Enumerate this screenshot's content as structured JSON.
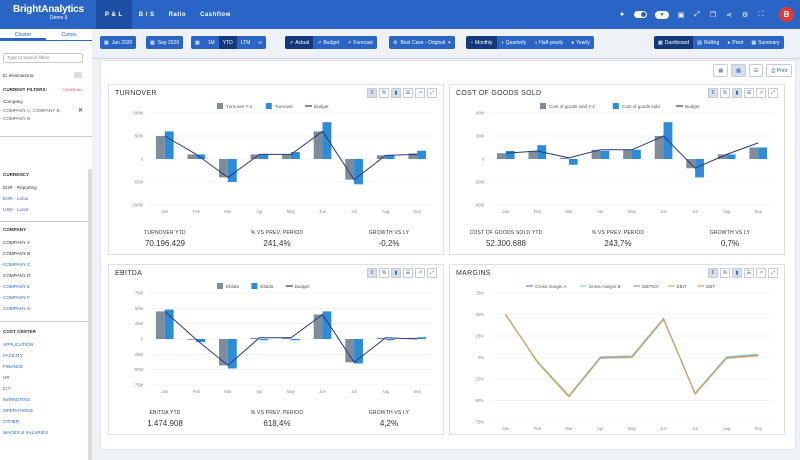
{
  "app": {
    "logo_text": "BrightAnalytics",
    "logo_sub": "Demo 6",
    "user_initial": "B",
    "colors": {
      "primary": "#2a64c5",
      "bar_prev": "#7f8c99",
      "bar_cur": "#2d8bd8",
      "budget": "#2b3a7a"
    }
  },
  "nav": {
    "tabs": [
      {
        "label": "P & L",
        "active": true
      },
      {
        "label": "B / S"
      },
      {
        "label": "Ratio"
      },
      {
        "label": "Cashflow"
      }
    ]
  },
  "top_icons": [
    "record-icon",
    "toggle-icon",
    "filter-toggle-icon",
    "save-icon",
    "export-icon",
    "copy-icon",
    "share-icon",
    "settings-icon",
    "fullscreen-icon"
  ],
  "sidebar": {
    "tabs": [
      "Cluster",
      "Conso"
    ],
    "search_placeholder": "Type to search filters",
    "ic_label": "IC eliminations:",
    "current_filters": "CURRENT FILTERS:",
    "clear_all": "CLEAR ALL",
    "company_filter_title": "Company",
    "company_filter_value": "COMPANY A, COMPANY B, COMPANY D",
    "currency": {
      "title": "CURRENCY",
      "items": [
        "EUR - Reporting",
        "EUR - Local",
        "USD - Local"
      ]
    },
    "company": {
      "title": "COMPANY",
      "items": [
        "COMPANY A",
        "COMPANY B",
        "COMPANY C",
        "COMPANY D",
        "COMPANY E",
        "COMPANY F",
        "COMPANY G"
      ]
    },
    "cost_center": {
      "title": "COST CENTER",
      "items": [
        "APPLICATION",
        "FACILITY",
        "FINANCE",
        "HR",
        "ICT",
        "MARKETING",
        "OPERATIONS",
        "OTHER",
        "WAGES & SALARIES"
      ]
    }
  },
  "toolbar": {
    "date_from": "Jan 2020",
    "date_to": "Sep 2020",
    "periods": [
      "1M",
      "YTD",
      "LTM"
    ],
    "period_active": "YTD",
    "scenario": [
      "Actual",
      "Budget",
      "Forecast"
    ],
    "case": "Best Case - Original",
    "freq": [
      "Monthly",
      "Quarterly",
      "Half-yearly",
      "Yearly"
    ],
    "views": [
      "Dashboard",
      "Rolling",
      "Pivot",
      "Summary"
    ],
    "print": "Print"
  },
  "months": [
    "Jan",
    "Feb",
    "Mar",
    "Apr",
    "May",
    "Jun",
    "Jul",
    "Aug",
    "Sep"
  ],
  "chart_data": [
    {
      "type": "bar",
      "title": "TURNOVER",
      "legend": [
        "Turnover Y-1",
        "Turnover",
        "Budget"
      ],
      "categories": [
        "Jan",
        "Feb",
        "Mar",
        "Apr",
        "May",
        "Jun",
        "Jul",
        "Aug",
        "Sep"
      ],
      "yticks": [
        "100M",
        "50M",
        "0",
        "-50M",
        "-100M"
      ],
      "ylim": [
        -100,
        100
      ],
      "series": [
        {
          "name": "Turnover Y-1",
          "values": [
            50,
            10,
            -40,
            10,
            10,
            60,
            -45,
            8,
            12
          ]
        },
        {
          "name": "Turnover",
          "values": [
            60,
            10,
            -50,
            10,
            15,
            80,
            -55,
            8,
            18
          ]
        },
        {
          "name": "Budget",
          "values": [
            50,
            10,
            -40,
            10,
            10,
            60,
            -45,
            8,
            10
          ]
        }
      ],
      "kpis": [
        {
          "label": "TURNOVER YTD",
          "value": "70.196.429"
        },
        {
          "label": "% VS PREV. PERIOD",
          "value": "241,4%"
        },
        {
          "label": "GROWTH VS LY",
          "value": "-0,2%"
        }
      ]
    },
    {
      "type": "bar",
      "title": "COST OF GOODS SOLD",
      "legend": [
        "Cost of goods sold Y-1",
        "Cost of goods sold",
        "Budget"
      ],
      "categories": [
        "Jan",
        "Feb",
        "Mar",
        "Apr",
        "May",
        "Jun",
        "Jul",
        "Aug",
        "Sep"
      ],
      "yticks": [
        "40M",
        "20M",
        "0",
        "-20M",
        "-40M"
      ],
      "ylim": [
        -40,
        40
      ],
      "series": [
        {
          "name": "Cost of goods sold Y-1",
          "values": [
            5,
            7,
            1,
            8,
            8,
            20,
            -8,
            4,
            10
          ]
        },
        {
          "name": "Cost of goods sold",
          "values": [
            7,
            12,
            -5,
            7,
            8,
            32,
            -16,
            4,
            10
          ]
        },
        {
          "name": "Budget",
          "values": [
            5,
            7,
            1,
            8,
            8,
            20,
            -8,
            4,
            14
          ]
        }
      ],
      "kpis": [
        {
          "label": "COST OF GOODS SOLD YTD",
          "value": "52.300.688"
        },
        {
          "label": "% VS PREV. PERIOD",
          "value": "243,7%"
        },
        {
          "label": "GROWTH VS LY",
          "value": "0,7%"
        }
      ]
    },
    {
      "type": "bar",
      "title": "EBITDA",
      "legend": [
        "Ebitda",
        "Ebitda",
        "Budget"
      ],
      "categories": [
        "Jan",
        "Feb",
        "Mar",
        "Apr",
        "May",
        "Jun",
        "Jul",
        "Aug",
        "Sep"
      ],
      "yticks": [
        "75M",
        "50M",
        "25M",
        "0",
        "-25M",
        "-50M",
        "-75M"
      ],
      "ylim": [
        -75,
        75
      ],
      "series": [
        {
          "name": "Ebitda",
          "values": [
            45,
            -1,
            -43,
            2,
            2,
            40,
            -38,
            2,
            2
          ]
        },
        {
          "name": "Ebitda",
          "values": [
            48,
            -5,
            -48,
            -2,
            -2,
            45,
            -40,
            -2,
            3
          ]
        },
        {
          "name": "Budget",
          "values": [
            45,
            -1,
            -43,
            2,
            2,
            40,
            -38,
            2,
            0
          ]
        }
      ],
      "kpis": [
        {
          "label": "EBITDA YTD",
          "value": "1.474.908"
        },
        {
          "label": "% VS PREV. PERIOD",
          "value": "618,4%"
        },
        {
          "label": "GROWTH VS LY",
          "value": "4,2%"
        }
      ]
    },
    {
      "type": "line",
      "title": "MARGINS",
      "legend": [
        "Gross margin A",
        "Gross margin B",
        "EBITDA",
        "EBIT",
        "EBT"
      ],
      "categories": [
        "Jan",
        "Feb",
        "Mar",
        "Apr",
        "May",
        "Jun",
        "Jul",
        "Aug",
        "Sep"
      ],
      "yticks": [
        "75%",
        "50%",
        "25%",
        "0%",
        "-25%",
        "-50%",
        "-75%"
      ],
      "ylim": [
        -75,
        75
      ],
      "series": [
        {
          "name": "Gross margin A",
          "values": [
            50,
            -5,
            -45,
            0,
            0,
            45,
            -42,
            0,
            2
          ]
        },
        {
          "name": "Gross margin B",
          "values": [
            50,
            -4,
            -44,
            1,
            2,
            46,
            -41,
            1,
            4
          ]
        },
        {
          "name": "EBITDA",
          "values": [
            49,
            -5,
            -45,
            0,
            1,
            45,
            -42,
            0,
            3
          ]
        },
        {
          "name": "EBIT",
          "values": [
            50,
            -5,
            -45,
            -1,
            0,
            44,
            -42,
            -1,
            2
          ]
        },
        {
          "name": "EBT",
          "values": [
            50,
            -6,
            -46,
            -1,
            0,
            44,
            -43,
            -1,
            2
          ]
        }
      ],
      "series_colors": [
        "#5b8dd9",
        "#7fd3e8",
        "#9aa0a8",
        "#c8b060",
        "#e0a060"
      ]
    }
  ]
}
